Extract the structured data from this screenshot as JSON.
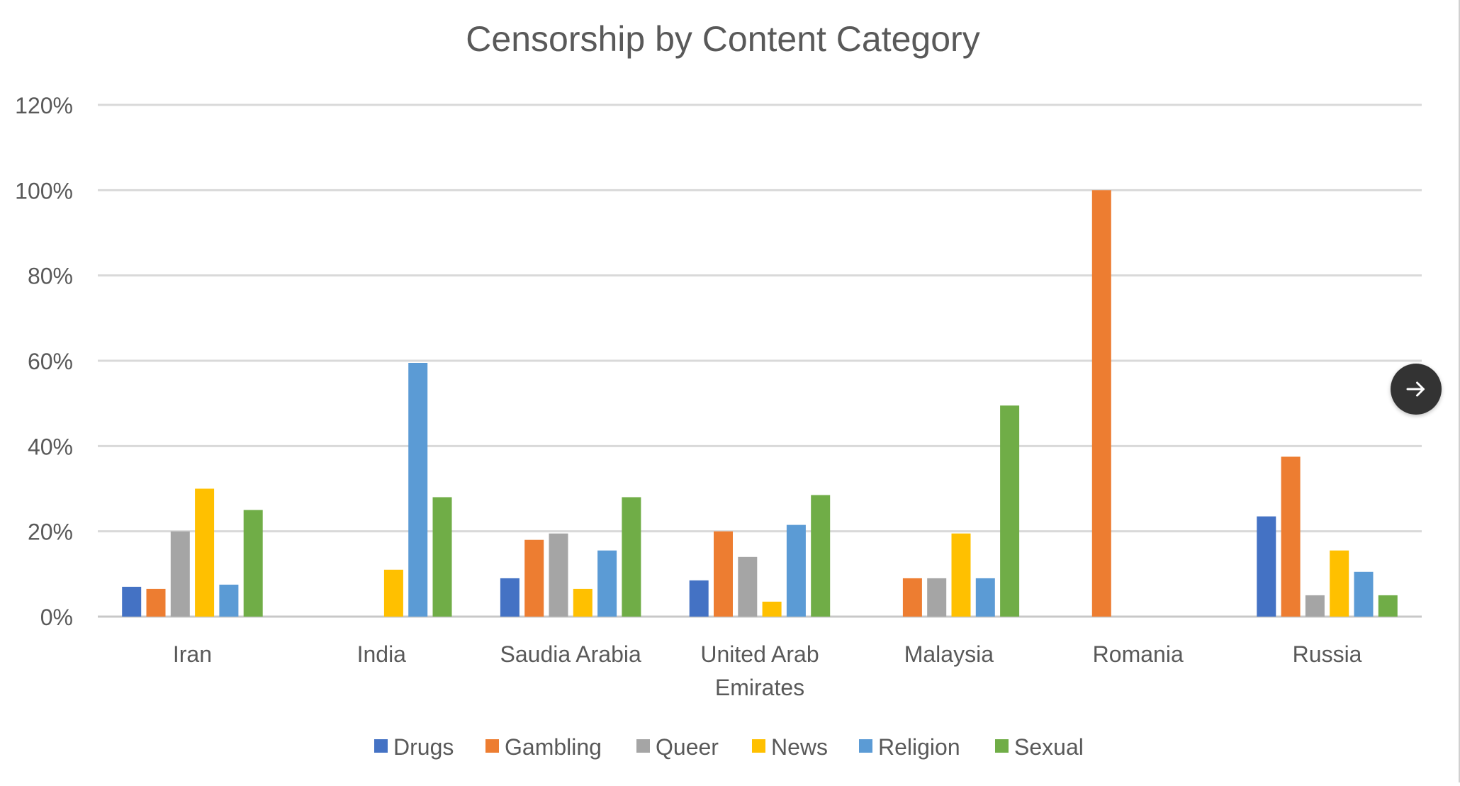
{
  "chart_data": {
    "type": "bar",
    "title": "Censorship by Content Category",
    "xlabel": "",
    "ylabel": "",
    "ylim": [
      0,
      1.2
    ],
    "y_ticks": [
      "0%",
      "20%",
      "40%",
      "60%",
      "80%",
      "100%",
      "120%"
    ],
    "y_tick_values": [
      0,
      0.2,
      0.4,
      0.6,
      0.8,
      1.0,
      1.2
    ],
    "grid": true,
    "legend_position": "bottom",
    "categories": [
      [
        "Iran"
      ],
      [
        "India"
      ],
      [
        "Saudia Arabia"
      ],
      [
        "United Arab",
        "Emirates"
      ],
      [
        "Malaysia"
      ],
      [
        "Romania"
      ],
      [
        "Russia"
      ]
    ],
    "series": [
      {
        "name": "Drugs",
        "color": "#4472C4",
        "values": [
          0.07,
          0.0,
          0.09,
          0.085,
          0.0,
          0.0,
          0.235
        ]
      },
      {
        "name": "Gambling",
        "color": "#ED7D31",
        "values": [
          0.065,
          0.0,
          0.18,
          0.2,
          0.09,
          1.0,
          0.375
        ]
      },
      {
        "name": "Queer",
        "color": "#A5A5A5",
        "values": [
          0.2,
          0.0,
          0.195,
          0.14,
          0.09,
          0.0,
          0.05
        ]
      },
      {
        "name": "News",
        "color": "#FFC000",
        "values": [
          0.3,
          0.11,
          0.065,
          0.035,
          0.195,
          0.0,
          0.155
        ]
      },
      {
        "name": "Religion",
        "color": "#5B9BD5",
        "values": [
          0.075,
          0.595,
          0.155,
          0.215,
          0.09,
          0.0,
          0.105
        ]
      },
      {
        "name": "Sexual",
        "color": "#70AD47",
        "values": [
          0.25,
          0.28,
          0.28,
          0.285,
          0.495,
          0.0,
          0.05
        ]
      }
    ]
  },
  "ui": {
    "next_icon": "arrow-right-icon"
  }
}
